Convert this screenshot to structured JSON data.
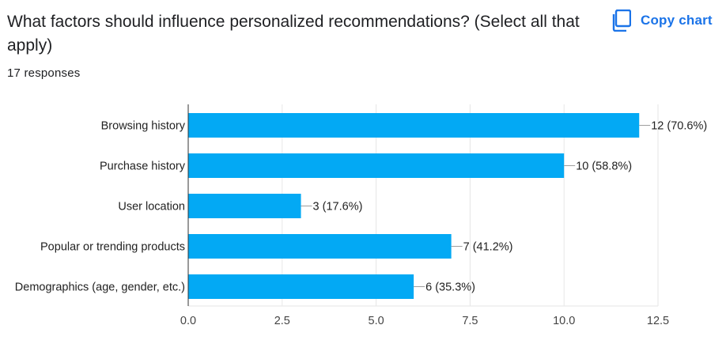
{
  "question": {
    "title": "What factors should influence personalized recommendations? (Select all that apply)",
    "responses": "17 responses"
  },
  "toolbar": {
    "copy_label": "Copy chart",
    "copy_icon": "copy-icon",
    "accent_color": "#1a73e8"
  },
  "chart_data": {
    "type": "bar",
    "orientation": "horizontal",
    "categories": [
      "Browsing history",
      "Purchase history",
      "User location",
      "Popular or trending products",
      "Demographics (age, gender, etc.)"
    ],
    "values": [
      12,
      10,
      3,
      7,
      6
    ],
    "data_labels": [
      "12 (70.6%)",
      "10 (58.8%)",
      "3 (17.6%)",
      "7 (41.2%)",
      "6 (35.3%)"
    ],
    "xlim": [
      0,
      12.5
    ],
    "x_ticks": [
      0,
      2.5,
      5,
      7.5,
      10,
      12.5
    ],
    "x_tick_labels": [
      "0.0",
      "2.5",
      "5.0",
      "7.5",
      "10.0",
      "12.5"
    ],
    "grid": true,
    "bar_color": "#03a9f4",
    "title": "",
    "xlabel": "",
    "ylabel": ""
  }
}
